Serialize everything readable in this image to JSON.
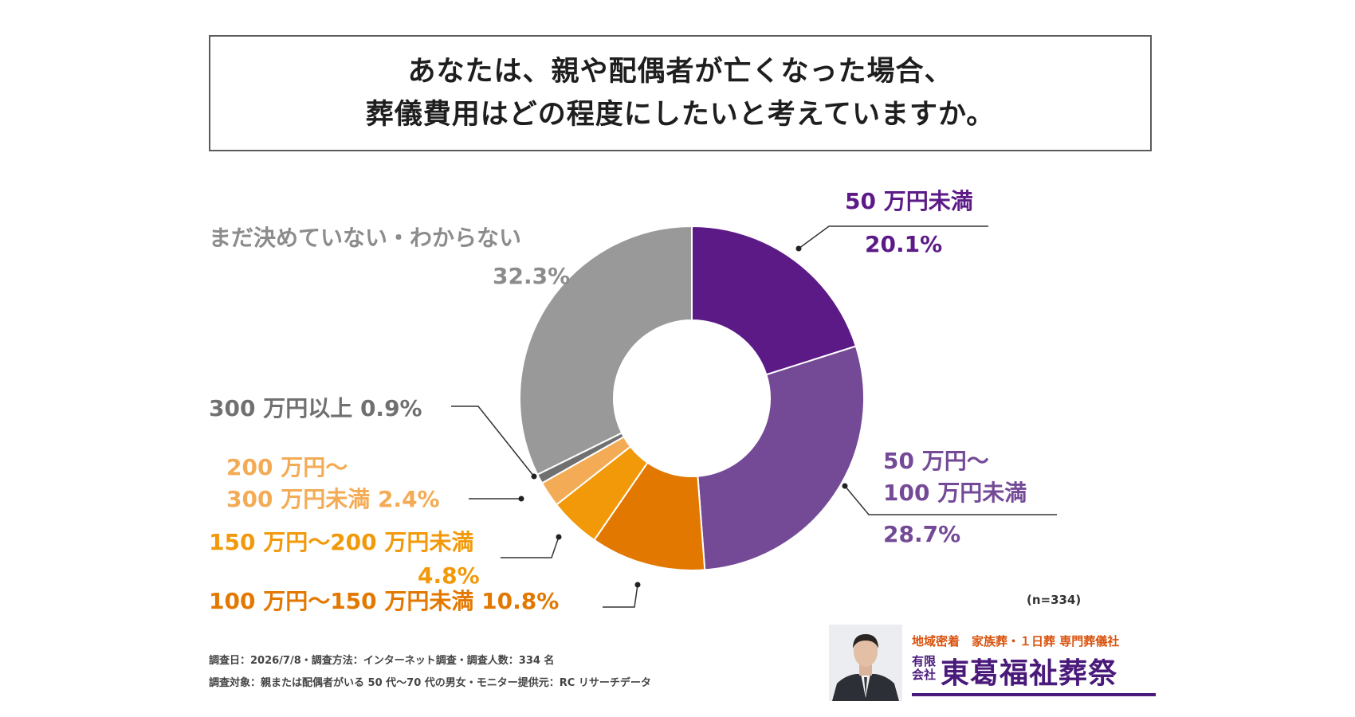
{
  "title": {
    "line1": "あなたは、親や配偶者が亡くなった場合、",
    "line2": "葬儀費用はどの程度にしたいと考えていますか。"
  },
  "chart_data": {
    "type": "pie",
    "donut": true,
    "slices": [
      {
        "label": "50 万円未満",
        "value": 20.1,
        "pct": "20.1%",
        "color": "#5c1a87"
      },
      {
        "label": "50 万円～\n100 万円未満",
        "value": 28.7,
        "pct": "28.7%",
        "color": "#744a97"
      },
      {
        "label": "100 万円～150 万円未満",
        "value": 10.8,
        "pct": "10.8%",
        "color": "#e37800"
      },
      {
        "label": "150 万円～200 万円未満",
        "value": 4.8,
        "pct": "4.8%",
        "color": "#f2990a"
      },
      {
        "label": "200 万円～\n300 万円未満",
        "value": 2.4,
        "pct": "2.4%",
        "color": "#f4ab55"
      },
      {
        "label": "300 万円以上",
        "value": 0.9,
        "pct": "0.9%",
        "color": "#707070"
      },
      {
        "label": "まだ決めていない・わからない",
        "value": 32.3,
        "pct": "32.3%",
        "color": "#999999"
      }
    ]
  },
  "sample_note": "(n=334)",
  "footnote1": "調査日：2026/7/8・調査方法：インターネット調査・調査人数：334 名",
  "footnote2": "調査対象：親または配偶者がいる 50 代～70 代の男女・モニター提供元：RC リサーチデータ",
  "logo": {
    "tagline": "地域密着　家族葬・１日葬 専門葬儀社",
    "corp_type": "有限会社",
    "name": "東葛福祉葬祭"
  }
}
